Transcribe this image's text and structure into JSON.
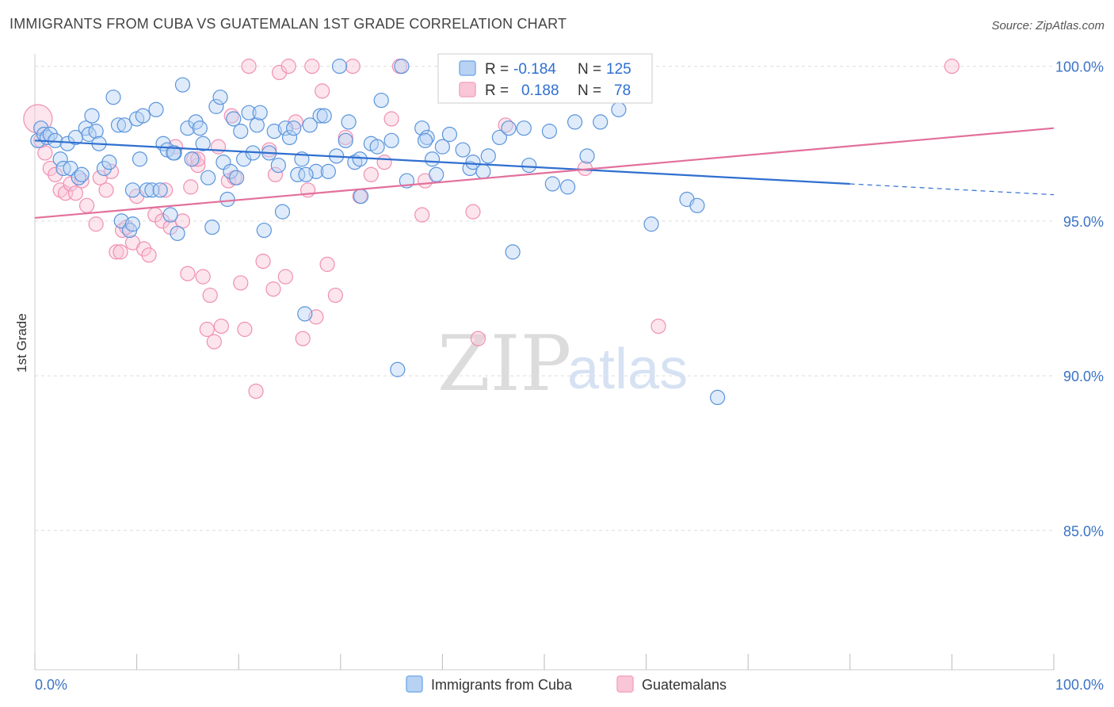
{
  "title": "IMMIGRANTS FROM CUBA VS GUATEMALAN 1ST GRADE CORRELATION CHART",
  "source": "Source: ZipAtlas.com",
  "watermark": {
    "zip": "ZIP",
    "atlas": "atlas"
  },
  "colors": {
    "blue": "#7aaee8",
    "blue_line": "#2f6fd0",
    "pink": "#f4a7c1",
    "pink_line": "#e2709b",
    "tick": "#3b73c4",
    "grid": "#dddddd"
  },
  "stats": {
    "blue": {
      "r_label": "R =",
      "r_value": "-0.184",
      "n_label": "N =",
      "n_value": "125"
    },
    "pink": {
      "r_label": "R =",
      "r_value": "0.188",
      "n_label": "N =",
      "n_value": "78"
    }
  },
  "chart_data": {
    "type": "scatter",
    "title": "IMMIGRANTS FROM CUBA VS GUATEMALAN 1ST GRADE CORRELATION CHART",
    "xlabel": "",
    "ylabel": "1st Grade",
    "xlim": [
      0,
      100
    ],
    "ylim": [
      80.5,
      100.4
    ],
    "x_tick_labels": [
      "0.0%",
      "100.0%"
    ],
    "y_ticks": [
      100,
      95,
      90,
      85
    ],
    "y_tick_labels": [
      "100.0%",
      "95.0%",
      "90.0%",
      "85.0%"
    ],
    "grid": true,
    "legend_position": "bottom-center",
    "series": [
      {
        "name": "Immigrants from Cuba",
        "color": "#7aaee8",
        "trend": {
          "x0": 0,
          "y0": 97.6,
          "x1": 80,
          "y1": 96.2,
          "dashed_to_x": 100,
          "dashed_to_y": 95.85
        },
        "points": [
          [
            0.3,
            97.6
          ],
          [
            0.6,
            98.0
          ],
          [
            0.9,
            97.8
          ],
          [
            1.2,
            97.7
          ],
          [
            1.5,
            97.8
          ],
          [
            2.0,
            97.6
          ],
          [
            2.5,
            97.0
          ],
          [
            2.8,
            96.7
          ],
          [
            3.2,
            97.5
          ],
          [
            3.5,
            96.7
          ],
          [
            4.0,
            97.7
          ],
          [
            4.3,
            96.4
          ],
          [
            4.6,
            96.5
          ],
          [
            5.0,
            98.0
          ],
          [
            5.3,
            97.8
          ],
          [
            5.6,
            98.4
          ],
          [
            6.0,
            97.9
          ],
          [
            6.3,
            97.5
          ],
          [
            6.8,
            96.7
          ],
          [
            7.3,
            96.9
          ],
          [
            7.7,
            99.0
          ],
          [
            8.2,
            98.1
          ],
          [
            8.5,
            95.0
          ],
          [
            8.8,
            98.1
          ],
          [
            9.3,
            94.7
          ],
          [
            9.6,
            94.9
          ],
          [
            10.0,
            98.3
          ],
          [
            10.3,
            97.0
          ],
          [
            10.6,
            98.4
          ],
          [
            11.0,
            96.0
          ],
          [
            11.5,
            96.0
          ],
          [
            11.9,
            98.6
          ],
          [
            12.3,
            96.0
          ],
          [
            12.6,
            97.5
          ],
          [
            13.0,
            97.3
          ],
          [
            13.3,
            95.2
          ],
          [
            13.7,
            97.2
          ],
          [
            14.0,
            94.6
          ],
          [
            14.5,
            99.4
          ],
          [
            15.0,
            98.0
          ],
          [
            15.4,
            97.0
          ],
          [
            15.8,
            98.2
          ],
          [
            16.2,
            98.0
          ],
          [
            16.5,
            97.5
          ],
          [
            17.0,
            96.4
          ],
          [
            17.4,
            94.8
          ],
          [
            17.8,
            98.7
          ],
          [
            18.2,
            99.0
          ],
          [
            18.5,
            96.9
          ],
          [
            18.9,
            95.7
          ],
          [
            19.2,
            96.6
          ],
          [
            19.5,
            98.3
          ],
          [
            19.8,
            96.4
          ],
          [
            20.2,
            97.9
          ],
          [
            20.5,
            97.0
          ],
          [
            21.0,
            98.5
          ],
          [
            21.4,
            97.2
          ],
          [
            21.8,
            98.1
          ],
          [
            22.1,
            98.5
          ],
          [
            22.5,
            94.7
          ],
          [
            23.0,
            97.2
          ],
          [
            23.5,
            97.9
          ],
          [
            23.9,
            96.8
          ],
          [
            24.3,
            95.3
          ],
          [
            24.6,
            98.0
          ],
          [
            25.0,
            97.7
          ],
          [
            25.4,
            98.0
          ],
          [
            25.8,
            96.5
          ],
          [
            26.2,
            97.0
          ],
          [
            26.5,
            92.0
          ],
          [
            27.0,
            98.1
          ],
          [
            27.6,
            96.6
          ],
          [
            28.0,
            98.4
          ],
          [
            28.4,
            98.4
          ],
          [
            28.8,
            96.6
          ],
          [
            29.6,
            97.1
          ],
          [
            29.9,
            100.0
          ],
          [
            30.5,
            97.6
          ],
          [
            30.8,
            98.2
          ],
          [
            31.4,
            96.9
          ],
          [
            32.0,
            95.8
          ],
          [
            33.0,
            97.5
          ],
          [
            33.6,
            97.4
          ],
          [
            34.0,
            98.9
          ],
          [
            35.0,
            97.6
          ],
          [
            35.6,
            90.2
          ],
          [
            36.0,
            100.0
          ],
          [
            36.5,
            96.3
          ],
          [
            38.0,
            98.0
          ],
          [
            38.5,
            97.7
          ],
          [
            39.0,
            97.0
          ],
          [
            39.4,
            96.5
          ],
          [
            40.0,
            97.4
          ],
          [
            40.7,
            97.8
          ],
          [
            42.0,
            97.3
          ],
          [
            42.7,
            96.7
          ],
          [
            43.0,
            96.9
          ],
          [
            44.5,
            97.1
          ],
          [
            45.6,
            97.7
          ],
          [
            46.5,
            98.0
          ],
          [
            46.9,
            94.0
          ],
          [
            48.0,
            98.0
          ],
          [
            48.5,
            96.8
          ],
          [
            50.5,
            97.9
          ],
          [
            50.8,
            96.2
          ],
          [
            52.3,
            96.1
          ],
          [
            53.0,
            98.2
          ],
          [
            54.2,
            97.1
          ],
          [
            55.5,
            98.2
          ],
          [
            57.3,
            98.6
          ],
          [
            60.5,
            94.9
          ],
          [
            64.0,
            95.7
          ],
          [
            65.0,
            95.5
          ],
          [
            67.0,
            89.3
          ],
          [
            38.3,
            97.6
          ],
          [
            9.6,
            96.0
          ],
          [
            26.6,
            96.5
          ],
          [
            31.9,
            97.0
          ],
          [
            13.6,
            97.2
          ],
          [
            44.0,
            96.6
          ]
        ]
      },
      {
        "name": "Guatemalans",
        "color": "#f4a7c1",
        "trend": {
          "x0": 0,
          "y0": 95.1,
          "x1": 100,
          "y1": 98.0
        },
        "points": [
          [
            0.3,
            98.3
          ],
          [
            0.6,
            97.6
          ],
          [
            1.0,
            97.2
          ],
          [
            1.5,
            96.7
          ],
          [
            2.0,
            96.5
          ],
          [
            2.5,
            96.0
          ],
          [
            3.0,
            95.9
          ],
          [
            3.5,
            96.2
          ],
          [
            4.0,
            95.9
          ],
          [
            4.6,
            96.3
          ],
          [
            5.1,
            95.5
          ],
          [
            6.0,
            94.9
          ],
          [
            6.4,
            96.4
          ],
          [
            7.0,
            96.0
          ],
          [
            7.5,
            96.6
          ],
          [
            8.0,
            94.0
          ],
          [
            8.6,
            94.7
          ],
          [
            9.0,
            94.8
          ],
          [
            9.6,
            94.3
          ],
          [
            10.0,
            95.8
          ],
          [
            10.7,
            94.1
          ],
          [
            11.2,
            93.9
          ],
          [
            11.8,
            95.2
          ],
          [
            12.5,
            95.0
          ],
          [
            12.8,
            96.0
          ],
          [
            13.3,
            94.8
          ],
          [
            13.8,
            97.4
          ],
          [
            14.5,
            95.0
          ],
          [
            15.0,
            93.3
          ],
          [
            15.3,
            96.1
          ],
          [
            15.6,
            97.0
          ],
          [
            16.0,
            96.8
          ],
          [
            16.5,
            93.2
          ],
          [
            16.9,
            91.5
          ],
          [
            17.2,
            92.6
          ],
          [
            17.6,
            91.1
          ],
          [
            18.0,
            97.4
          ],
          [
            18.3,
            91.6
          ],
          [
            19.0,
            96.3
          ],
          [
            19.3,
            98.4
          ],
          [
            19.6,
            96.4
          ],
          [
            20.2,
            93.0
          ],
          [
            20.6,
            91.5
          ],
          [
            21.0,
            100.0
          ],
          [
            21.7,
            89.5
          ],
          [
            22.4,
            93.7
          ],
          [
            23.0,
            97.3
          ],
          [
            23.4,
            92.8
          ],
          [
            24.0,
            99.8
          ],
          [
            24.6,
            93.2
          ],
          [
            24.9,
            100.0
          ],
          [
            25.6,
            98.2
          ],
          [
            26.3,
            91.2
          ],
          [
            26.8,
            96.0
          ],
          [
            27.2,
            100.0
          ],
          [
            27.6,
            91.9
          ],
          [
            28.2,
            99.2
          ],
          [
            28.7,
            93.6
          ],
          [
            29.5,
            92.6
          ],
          [
            30.5,
            97.7
          ],
          [
            31.2,
            100.0
          ],
          [
            31.9,
            95.8
          ],
          [
            33.0,
            96.5
          ],
          [
            34.3,
            96.9
          ],
          [
            35.0,
            98.3
          ],
          [
            35.8,
            100.0
          ],
          [
            38.0,
            95.2
          ],
          [
            38.3,
            96.3
          ],
          [
            43.0,
            95.3
          ],
          [
            43.5,
            91.2
          ],
          [
            46.2,
            98.1
          ],
          [
            54.0,
            96.7
          ],
          [
            59.6,
            100.0
          ],
          [
            61.2,
            91.6
          ],
          [
            90.0,
            100.0
          ],
          [
            16.0,
            97.0
          ],
          [
            8.4,
            94.0
          ],
          [
            23.6,
            96.5
          ]
        ]
      }
    ]
  },
  "legend": {
    "items": [
      {
        "label": "Immigrants from Cuba"
      },
      {
        "label": "Guatemalans"
      }
    ]
  }
}
